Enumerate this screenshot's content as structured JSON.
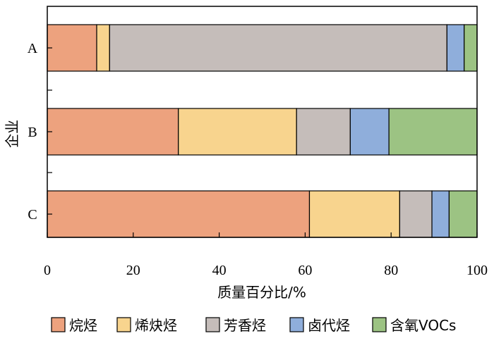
{
  "chart_data": {
    "type": "bar",
    "orientation": "horizontal",
    "stacked": true,
    "categories": [
      "A",
      "B",
      "C"
    ],
    "series": [
      {
        "name": "烷烃",
        "color": "#EDA27E",
        "values": [
          11.5,
          30.5,
          61.0
        ]
      },
      {
        "name": "烯炔烃",
        "color": "#F8D48E",
        "values": [
          3.0,
          27.5,
          21.0
        ]
      },
      {
        "name": "芳香烃",
        "color": "#C5BDBA",
        "values": [
          78.5,
          12.5,
          7.5
        ]
      },
      {
        "name": "卤代烃",
        "color": "#8FAEDB",
        "values": [
          4.0,
          9.0,
          4.0
        ]
      },
      {
        "name": "含氧VOCs",
        "color": "#9CC383",
        "values": [
          3.0,
          20.5,
          6.5
        ]
      }
    ],
    "xlabel": "质量百分比/%",
    "ylabel": "企业",
    "xlim": [
      0,
      100
    ],
    "xticks": [
      0,
      20,
      40,
      60,
      80,
      100
    ],
    "grid": false,
    "legend_position": "bottom"
  }
}
